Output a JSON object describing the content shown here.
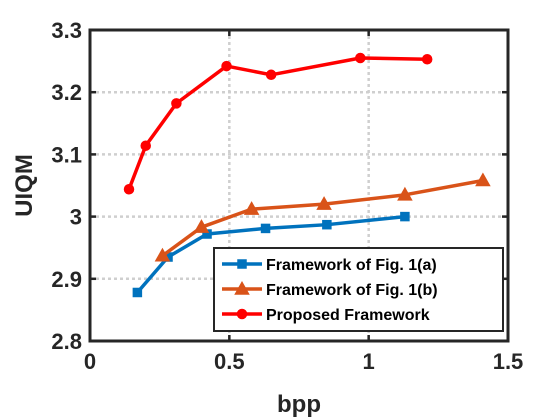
{
  "chart_data": {
    "type": "line",
    "xlabel": "bpp",
    "ylabel": "UIQM",
    "xlim": [
      0,
      1.5
    ],
    "ylim": [
      2.8,
      3.3
    ],
    "xticks": [
      0,
      0.5,
      1,
      1.5
    ],
    "xtick_labels": [
      "0",
      "0.5",
      "1",
      "1.5"
    ],
    "yticks": [
      2.8,
      2.9,
      3.0,
      3.1,
      3.2,
      3.3
    ],
    "ytick_labels": [
      "2.8",
      "2.9",
      "3",
      "3.1",
      "3.2",
      "3.3"
    ],
    "grid": true,
    "legend_position": "bottom-right",
    "series": [
      {
        "name": "Framework of Fig. 1(a)",
        "color": "#0072BD",
        "marker": "square",
        "x": [
          0.17,
          0.28,
          0.42,
          0.63,
          0.85,
          1.13
        ],
        "y": [
          2.878,
          2.935,
          2.972,
          2.981,
          2.987,
          3.0
        ]
      },
      {
        "name": "Framework of Fig. 1(b)",
        "color": "#D95319",
        "marker": "triangle",
        "x": [
          0.26,
          0.4,
          0.58,
          0.84,
          1.13,
          1.41
        ],
        "y": [
          2.937,
          2.983,
          3.012,
          3.02,
          3.035,
          3.058
        ]
      },
      {
        "name": "Proposed Framework",
        "color": "#FF0000",
        "marker": "circle",
        "x": [
          0.14,
          0.2,
          0.31,
          0.49,
          0.65,
          0.97,
          1.21
        ],
        "y": [
          3.044,
          3.114,
          3.182,
          3.242,
          3.228,
          3.255,
          3.253
        ]
      }
    ]
  }
}
